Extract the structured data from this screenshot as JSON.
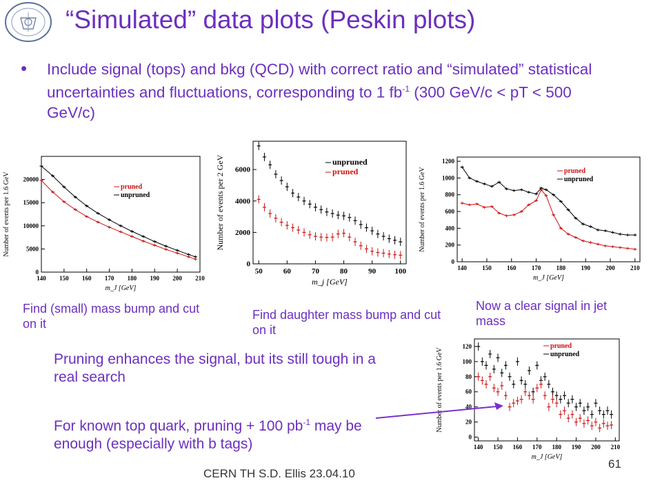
{
  "title": "“Simulated” data plots (Peskin plots)",
  "bullet": {
    "text_a": "Include signal (tops) and bkg (QCD) with correct ratio and “simulated” statistical uncertainties and fluctuations, corresponding to 1 fb",
    "sup": "-1",
    "text_b": " (300 GeV/c < pT < 500 GeV/c)"
  },
  "captions": {
    "c1": "Find (small) mass bump and cut on it",
    "c2": "Find daughter mass bump and cut on it",
    "c3": "Now a clear signal in jet mass"
  },
  "texts": {
    "pruning": "Pruning enhances the signal, but its still tough in a real search",
    "known_a": "For known top quark, pruning + 100 pb",
    "known_sup": "-1",
    "known_b": " may be enough (especially with b tags)"
  },
  "footer": "CERN TH     S.D. Ellis     23.04.10",
  "slide_number": "61",
  "colors": {
    "accent": "#6b2fbf",
    "pruned": "#cc1111",
    "unpruned": "#000000",
    "arrow": "#7b2fd0"
  },
  "chart_data": [
    {
      "type": "line",
      "ylabel": "Number of events per 1.6 GeV",
      "xlabel": "m_J [GeV]",
      "xlim": [
        140,
        210
      ],
      "ylim": [
        0,
        25000
      ],
      "xticks": [
        140,
        150,
        160,
        170,
        180,
        190,
        200,
        210
      ],
      "yticks": [
        0,
        5000,
        10000,
        15000,
        20000
      ],
      "legend": {
        "placement": "right",
        "entries": [
          "pruned",
          "unpruned"
        ]
      },
      "series": [
        {
          "name": "unpruned",
          "color": "#000000",
          "x": [
            140,
            145,
            150,
            155,
            160,
            165,
            170,
            175,
            180,
            185,
            190,
            195,
            200,
            205,
            208
          ],
          "y": [
            22900,
            20800,
            18400,
            16200,
            14300,
            12700,
            11300,
            10000,
            8800,
            7700,
            6600,
            5600,
            4700,
            3800,
            3300
          ]
        },
        {
          "name": "pruned",
          "color": "#cc1111",
          "x": [
            140,
            145,
            150,
            155,
            160,
            165,
            170,
            175,
            180,
            185,
            190,
            195,
            200,
            205,
            208
          ],
          "y": [
            19800,
            17300,
            15200,
            13500,
            12000,
            10800,
            9700,
            8700,
            7700,
            6700,
            5800,
            4900,
            4100,
            3300,
            2800
          ]
        }
      ]
    },
    {
      "type": "scatter",
      "ylabel": "Number of events per 2 GeV",
      "xlabel": "m_j [GeV]",
      "xlim": [
        48,
        102
      ],
      "ylim": [
        0,
        7800
      ],
      "xticks": [
        50,
        60,
        70,
        80,
        90,
        100
      ],
      "yticks": [
        0,
        2000,
        4000,
        6000
      ],
      "legend": {
        "placement": "top-right",
        "entries": [
          "unpruned",
          "pruned"
        ]
      },
      "series": [
        {
          "name": "unpruned",
          "color": "#000000",
          "x": [
            50,
            52,
            54,
            56,
            58,
            60,
            62,
            64,
            66,
            68,
            70,
            72,
            74,
            76,
            78,
            80,
            82,
            84,
            86,
            88,
            90,
            92,
            94,
            96,
            98,
            100
          ],
          "y": [
            7500,
            6800,
            6300,
            5700,
            5300,
            4900,
            4500,
            4250,
            4000,
            3800,
            3600,
            3450,
            3300,
            3200,
            3100,
            3050,
            2950,
            2750,
            2500,
            2300,
            2100,
            1900,
            1750,
            1600,
            1500,
            1400
          ]
        },
        {
          "name": "pruned",
          "color": "#cc1111",
          "x": [
            50,
            52,
            54,
            56,
            58,
            60,
            62,
            64,
            66,
            68,
            70,
            72,
            74,
            76,
            78,
            80,
            82,
            84,
            86,
            88,
            90,
            92,
            94,
            96,
            98,
            100
          ],
          "y": [
            4100,
            3600,
            3200,
            2900,
            2650,
            2450,
            2300,
            2150,
            2000,
            1850,
            1750,
            1700,
            1680,
            1700,
            1900,
            1950,
            1700,
            1400,
            1150,
            950,
            800,
            720,
            680,
            620,
            580,
            550
          ]
        }
      ]
    },
    {
      "type": "line",
      "ylabel": "Number of events per 1.6 GeV",
      "xlabel": "m_J [GeV]",
      "xlim": [
        138,
        212
      ],
      "ylim": [
        0,
        1250
      ],
      "xticks": [
        140,
        150,
        160,
        170,
        180,
        190,
        200,
        210
      ],
      "yticks": [
        0,
        200,
        400,
        600,
        800,
        1000,
        1200
      ],
      "legend": {
        "placement": "top-right",
        "entries": [
          "pruned",
          "unpruned"
        ]
      },
      "series": [
        {
          "name": "unpruned",
          "color": "#000000",
          "x": [
            140,
            143,
            146,
            149,
            152,
            155,
            158,
            161,
            164,
            167,
            170,
            172,
            174,
            177,
            180,
            183,
            186,
            189,
            192,
            195,
            198,
            201,
            204,
            207,
            210
          ],
          "y": [
            1130,
            1000,
            960,
            930,
            900,
            950,
            870,
            850,
            860,
            830,
            810,
            880,
            860,
            800,
            720,
            620,
            520,
            450,
            420,
            380,
            370,
            350,
            330,
            320,
            320
          ]
        },
        {
          "name": "pruned",
          "color": "#cc1111",
          "x": [
            140,
            143,
            146,
            149,
            152,
            155,
            158,
            161,
            164,
            167,
            170,
            172,
            174,
            177,
            180,
            183,
            186,
            189,
            192,
            195,
            198,
            201,
            204,
            207,
            210
          ],
          "y": [
            700,
            680,
            690,
            650,
            660,
            580,
            550,
            560,
            600,
            680,
            730,
            860,
            790,
            560,
            400,
            330,
            290,
            250,
            230,
            210,
            190,
            180,
            170,
            160,
            150
          ]
        }
      ]
    },
    {
      "type": "scatter",
      "ylabel": "Number of events per 1.6 GeV",
      "xlabel": "m_J [GeV]",
      "xlim": [
        138,
        212
      ],
      "ylim": [
        -5,
        130
      ],
      "xticks": [
        140,
        150,
        160,
        170,
        180,
        190,
        200,
        210
      ],
      "yticks": [
        0,
        20,
        40,
        60,
        80,
        100,
        120
      ],
      "legend": {
        "placement": "top-right",
        "entries": [
          "pruned",
          "unpruned"
        ]
      },
      "series": [
        {
          "name": "unpruned",
          "color": "#000000",
          "x": [
            140,
            142,
            144,
            146,
            148,
            150,
            152,
            154,
            156,
            158,
            160,
            162,
            164,
            166,
            168,
            170,
            172,
            174,
            176,
            178,
            180,
            182,
            184,
            186,
            188,
            190,
            192,
            194,
            196,
            198,
            200,
            202,
            204,
            206,
            208
          ],
          "y": [
            120,
            100,
            95,
            110,
            90,
            105,
            85,
            95,
            80,
            70,
            100,
            75,
            70,
            88,
            60,
            95,
            75,
            80,
            70,
            60,
            55,
            50,
            55,
            45,
            50,
            40,
            45,
            35,
            40,
            30,
            45,
            35,
            30,
            35,
            30
          ]
        },
        {
          "name": "pruned",
          "color": "#cc1111",
          "x": [
            140,
            142,
            144,
            146,
            148,
            150,
            152,
            154,
            156,
            158,
            160,
            162,
            164,
            166,
            168,
            170,
            172,
            174,
            176,
            178,
            180,
            182,
            184,
            186,
            188,
            190,
            192,
            194,
            196,
            198,
            200,
            202,
            204,
            206,
            208
          ],
          "y": [
            80,
            75,
            70,
            80,
            65,
            60,
            68,
            55,
            40,
            45,
            48,
            50,
            60,
            55,
            50,
            65,
            70,
            55,
            40,
            50,
            45,
            30,
            35,
            25,
            30,
            20,
            25,
            18,
            22,
            15,
            20,
            12,
            18,
            15,
            16
          ]
        }
      ]
    }
  ]
}
